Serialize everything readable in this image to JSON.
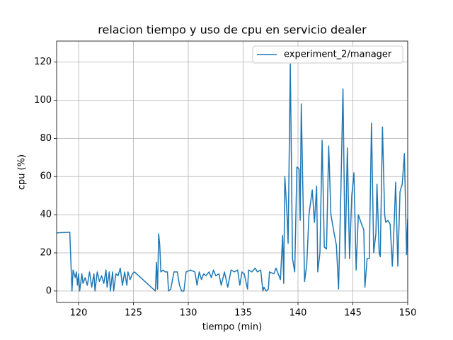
{
  "chart_data": {
    "type": "line",
    "title": "relacion tiempo y uso de cpu en servicio dealer",
    "x_label": "tiempo (min)",
    "y_label": "cpu (%)",
    "x": [
      118,
      119.2,
      119.4,
      119.5,
      119.7,
      119.8,
      119.9,
      120.0,
      120.1,
      120.3,
      120.4,
      120.6,
      120.8,
      121.0,
      121.2,
      121.4,
      121.5,
      121.7,
      121.9,
      122.1,
      122.3,
      122.5,
      122.6,
      122.8,
      122.9,
      123.1,
      123.2,
      123.4,
      123.6,
      123.8,
      124.0,
      124.2,
      124.4,
      124.5,
      124.7,
      124.9,
      125.1,
      127.0,
      127.1,
      127.2,
      127.3,
      127.4,
      127.5,
      127.7,
      127.9,
      128.1,
      128.2,
      128.4,
      128.7,
      129.0,
      129.2,
      129.4,
      129.6,
      129.8,
      130.2,
      130.6,
      130.8,
      131.0,
      131.2,
      131.4,
      131.6,
      131.9,
      132.1,
      132.3,
      132.5,
      132.8,
      133.0,
      133.3,
      133.6,
      133.9,
      134.2,
      134.5,
      134.7,
      134.9,
      135.1,
      135.4,
      135.5,
      135.8,
      136.1,
      136.3,
      136.6,
      136.8,
      136.9,
      137.1,
      137.3,
      137.4,
      137.8,
      138.0,
      138.2,
      138.4,
      138.6,
      138.7,
      138.8,
      139.0,
      139.1,
      139.3,
      139.5,
      139.7,
      139.9,
      140.1,
      140.2,
      140.3,
      140.6,
      140.8,
      141.0,
      141.3,
      141.5,
      141.7,
      141.8,
      142.0,
      142.2,
      142.4,
      142.6,
      142.8,
      143.0,
      143.3,
      143.5,
      143.7,
      143.9,
      144.1,
      144.3,
      144.5,
      144.7,
      144.9,
      145.1,
      145.3,
      145.5,
      145.8,
      146.0,
      146.1,
      146.3,
      146.5,
      146.7,
      146.9,
      147.1,
      147.2,
      147.4,
      147.5,
      147.7,
      147.9,
      148.0,
      148.2,
      148.4,
      148.6,
      148.8,
      148.9,
      149.1,
      149.3,
      149.5,
      149.7,
      149.9,
      150.0
    ],
    "series": [
      {
        "name": "experiment_2/manager",
        "color": "#1f77b4",
        "values": [
          30.5,
          30.8,
          0,
          11,
          7,
          10,
          3,
          9,
          0,
          9,
          4,
          7,
          3,
          10,
          2,
          9,
          0,
          10,
          5,
          8,
          4,
          11,
          2,
          10,
          0,
          10,
          0,
          9,
          8,
          12,
          3,
          10,
          3,
          10,
          6,
          9,
          10,
          0,
          15,
          1,
          30,
          24,
          10,
          11,
          10,
          10,
          0,
          1,
          10,
          10,
          3,
          0,
          0,
          10,
          11,
          10,
          3,
          10,
          6,
          9,
          8,
          10,
          7,
          11,
          8,
          9,
          3,
          10,
          2,
          11,
          10,
          11,
          3,
          10,
          9,
          1,
          11,
          10,
          12,
          10,
          11,
          0,
          2,
          0,
          1,
          10,
          9,
          12,
          9,
          6,
          29,
          4,
          60,
          40,
          25,
          119,
          17,
          10,
          65,
          64,
          37,
          98,
          5,
          14,
          40,
          53,
          36,
          55,
          10,
          20,
          79,
          23,
          22,
          76,
          40,
          30,
          24,
          1,
          50,
          106,
          17,
          75,
          17,
          50,
          62,
          11,
          40,
          35,
          32,
          2,
          17,
          17,
          88,
          20,
          30,
          56,
          20,
          18,
          86,
          40,
          36,
          37,
          35,
          13,
          40,
          57,
          13,
          52,
          56,
          72,
          19,
          38
        ]
      }
    ],
    "xlim": [
      118,
      150
    ],
    "ylim": [
      -6,
      131
    ],
    "xticks": [
      120,
      125,
      130,
      135,
      140,
      145,
      150
    ],
    "yticks": [
      0,
      20,
      40,
      60,
      80,
      100,
      120
    ],
    "grid": true,
    "legend": "upper right"
  }
}
